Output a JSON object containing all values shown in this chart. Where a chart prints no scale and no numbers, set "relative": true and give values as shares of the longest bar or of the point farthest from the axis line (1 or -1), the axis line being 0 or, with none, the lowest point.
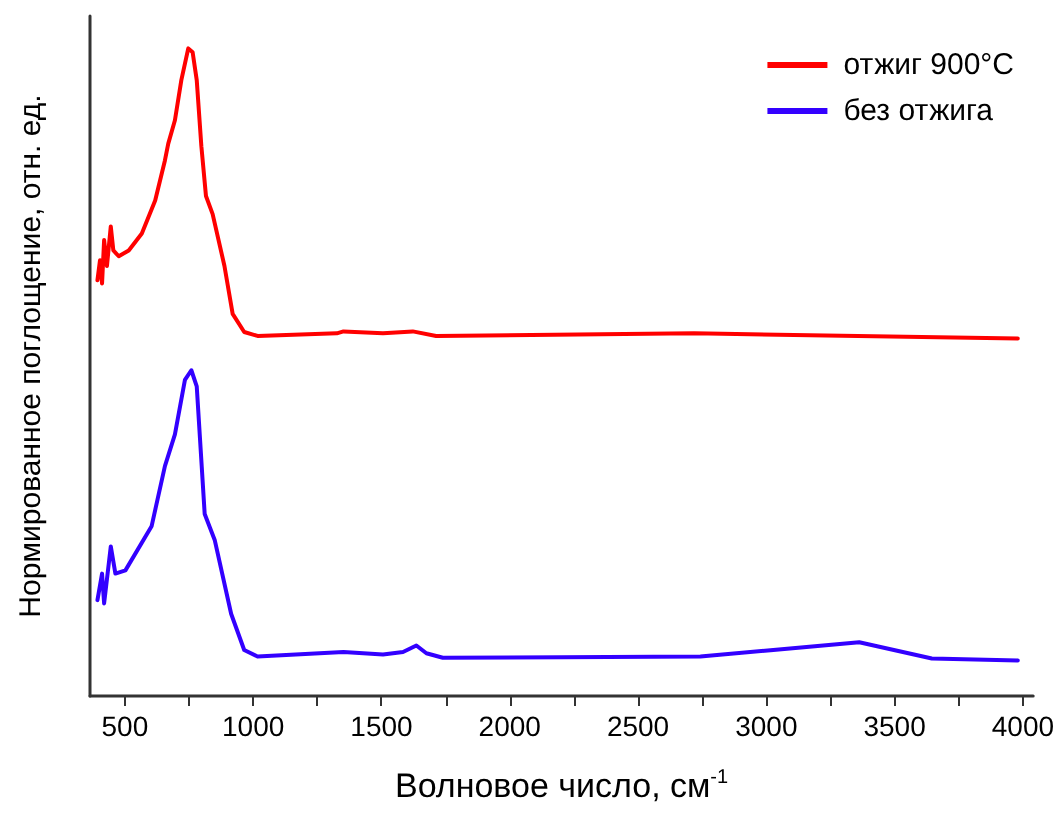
{
  "chart_data": {
    "type": "line",
    "relative": true,
    "xlabel": "Волновое число, см$^{-1}$",
    "ylabel": "Нормированное поглощение, отн. ед.",
    "xlim": [
      364,
      4040
    ],
    "xticks": [
      500,
      {
        "value": 750,
        "label": null
      },
      1000,
      {
        "value": 1250,
        "label": null
      },
      1500,
      {
        "value": 1750,
        "label": null
      },
      2000,
      {
        "value": 2250,
        "label": null
      },
      2500,
      {
        "value": 2750,
        "label": null
      },
      3000,
      {
        "value": 3250,
        "label": null
      },
      3500,
      {
        "value": 3750,
        "label": null
      },
      4000
    ],
    "legend": "top right",
    "grid": false,
    "marker": "none",
    "line_style": "solid",
    "series": [
      {
        "name": "отжиг 900°C",
        "color": "#ff0000",
        "x": [
          393,
          403,
          411,
          419,
          430,
          445,
          455,
          476,
          515,
          566,
          618,
          656,
          669,
          695,
          720,
          747,
          764,
          780,
          798,
          816,
          842,
          888,
          920,
          965,
          1017,
          1326,
          1352,
          1506,
          1622,
          1713,
          2718,
          3980
        ],
        "values": [
          0.642,
          0.673,
          0.637,
          0.704,
          0.664,
          0.725,
          0.688,
          0.679,
          0.688,
          0.714,
          0.765,
          0.827,
          0.853,
          0.889,
          0.951,
          1.0,
          0.994,
          0.951,
          0.849,
          0.772,
          0.744,
          0.664,
          0.59,
          0.562,
          0.556,
          0.56,
          0.563,
          0.56,
          0.563,
          0.556,
          0.56,
          0.552
        ]
      },
      {
        "name": "без отжига",
        "color": "#3300ff",
        "x": [
          393,
          411,
          419,
          445,
          463,
          502,
          604,
          656,
          695,
          734,
          759,
          780,
          811,
          850,
          914,
          965,
          1017,
          1352,
          1506,
          1584,
          1636,
          1675,
          1739,
          2200,
          2743,
          3027,
          3362,
          3645,
          3980
        ],
        "values": [
          0.148,
          0.189,
          0.143,
          0.231,
          0.189,
          0.194,
          0.262,
          0.355,
          0.404,
          0.488,
          0.503,
          0.478,
          0.281,
          0.241,
          0.127,
          0.071,
          0.061,
          0.068,
          0.064,
          0.068,
          0.078,
          0.066,
          0.059,
          0.06,
          0.061,
          0.071,
          0.083,
          0.058,
          0.055
        ]
      }
    ]
  }
}
